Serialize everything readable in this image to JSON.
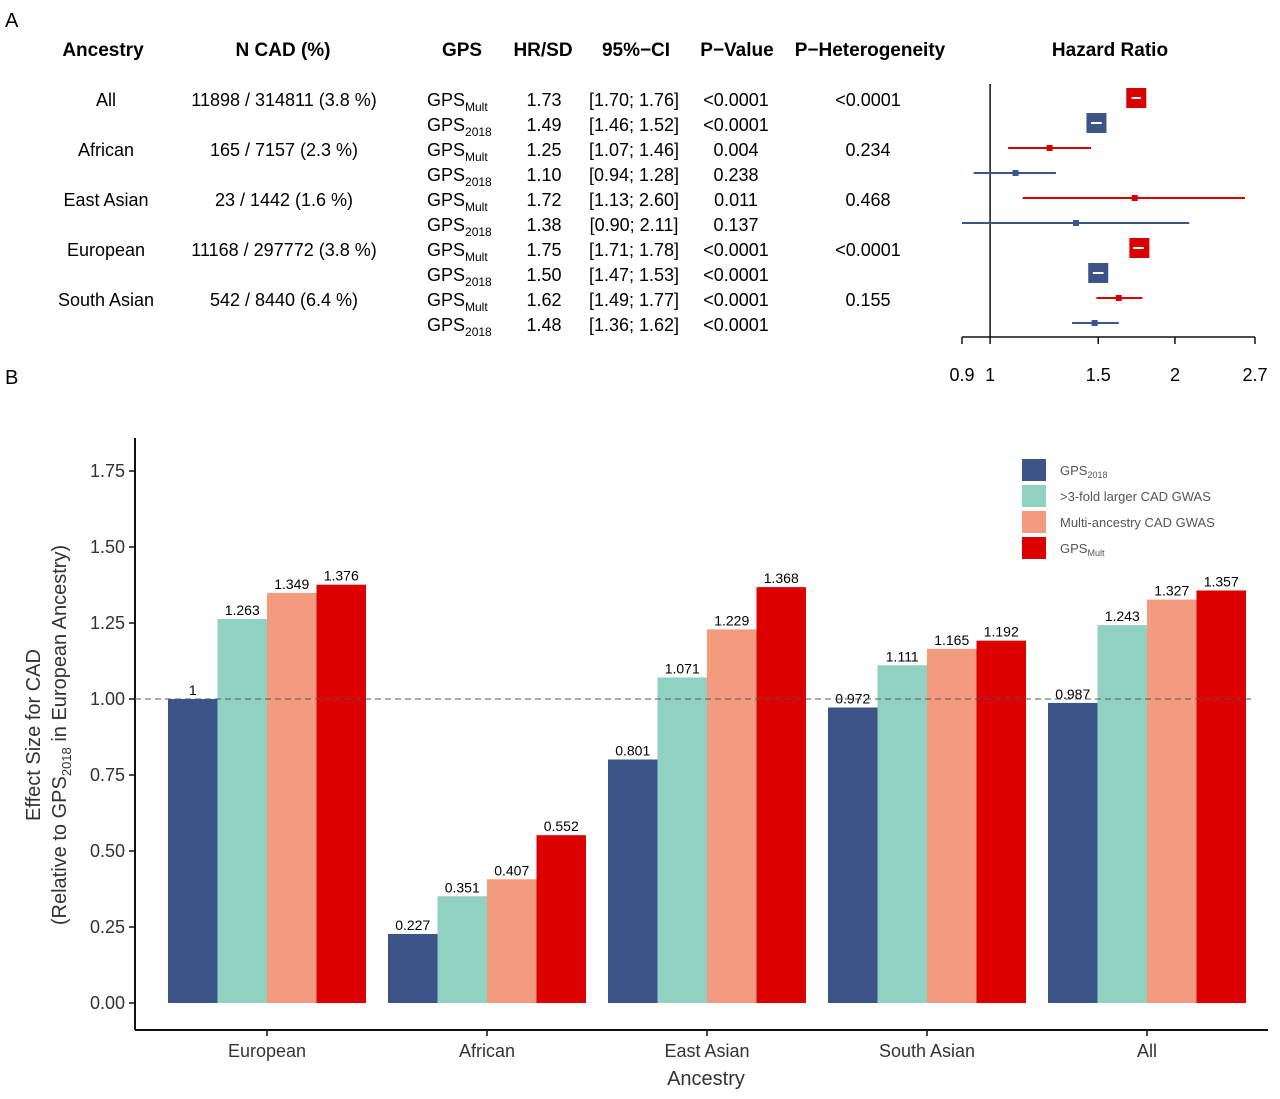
{
  "panels": {
    "a": "A",
    "b": "B"
  },
  "table": {
    "headers": {
      "ancestry": "Ancestry",
      "ncad": "N CAD (%)",
      "gps": "GPS",
      "hr": "HR/SD",
      "ci": "95%−CI",
      "p": "P−Value",
      "phet": "P−Heterogeneity",
      "forest": "Hazard Ratio"
    },
    "groups": [
      {
        "name": "All",
        "ncad": "11898 / 314811 (3.8 %)",
        "phet": "<0.0001"
      },
      {
        "name": "African",
        "ncad": "165 / 7157 (2.3 %)",
        "phet": "0.234"
      },
      {
        "name": "East Asian",
        "ncad": "23 / 1442 (1.6 %)",
        "phet": "0.468"
      },
      {
        "name": "European",
        "ncad": "11168 / 297772 (3.8 %)",
        "phet": "<0.0001"
      },
      {
        "name": "South Asian",
        "ncad": "542 / 8440 (6.4 %)",
        "phet": "0.155"
      }
    ],
    "rows": [
      {
        "gps_base": "GPS",
        "gps_sub": "Mult",
        "hr": "1.73",
        "ci": "[1.70; 1.76]",
        "p": "<0.0001",
        "est": 1.73,
        "lo": 1.7,
        "hi": 1.76,
        "color": "#d90000"
      },
      {
        "gps_base": "GPS",
        "gps_sub": "2018",
        "hr": "1.49",
        "ci": "[1.46; 1.52]",
        "p": "<0.0001",
        "est": 1.49,
        "lo": 1.46,
        "hi": 1.52,
        "color": "#3c5488"
      },
      {
        "gps_base": "GPS",
        "gps_sub": "Mult",
        "hr": "1.25",
        "ci": "[1.07; 1.46]",
        "p": "0.004",
        "est": 1.25,
        "lo": 1.07,
        "hi": 1.46,
        "color": "#d90000"
      },
      {
        "gps_base": "GPS",
        "gps_sub": "2018",
        "hr": "1.10",
        "ci": "[0.94; 1.28]",
        "p": "0.238",
        "est": 1.1,
        "lo": 0.94,
        "hi": 1.28,
        "color": "#3c5488"
      },
      {
        "gps_base": "GPS",
        "gps_sub": "Mult",
        "hr": "1.72",
        "ci": "[1.13; 2.60]",
        "p": "0.011",
        "est": 1.72,
        "lo": 1.13,
        "hi": 2.6,
        "color": "#d90000"
      },
      {
        "gps_base": "GPS",
        "gps_sub": "2018",
        "hr": "1.38",
        "ci": "[0.90; 2.11]",
        "p": "0.137",
        "est": 1.38,
        "lo": 0.9,
        "hi": 2.11,
        "color": "#3c5488"
      },
      {
        "gps_base": "GPS",
        "gps_sub": "Mult",
        "hr": "1.75",
        "ci": "[1.71; 1.78]",
        "p": "<0.0001",
        "est": 1.75,
        "lo": 1.71,
        "hi": 1.78,
        "color": "#d90000"
      },
      {
        "gps_base": "GPS",
        "gps_sub": "2018",
        "hr": "1.50",
        "ci": "[1.47; 1.53]",
        "p": "<0.0001",
        "est": 1.5,
        "lo": 1.47,
        "hi": 1.53,
        "color": "#3c5488"
      },
      {
        "gps_base": "GPS",
        "gps_sub": "Mult",
        "hr": "1.62",
        "ci": "[1.49; 1.77]",
        "p": "<0.0001",
        "est": 1.62,
        "lo": 1.49,
        "hi": 1.77,
        "color": "#d90000"
      },
      {
        "gps_base": "GPS",
        "gps_sub": "2018",
        "hr": "1.48",
        "ci": "[1.36; 1.62]",
        "p": "<0.0001",
        "est": 1.48,
        "lo": 1.36,
        "hi": 1.62,
        "color": "#3c5488"
      }
    ],
    "forest_axis": {
      "scale": "log",
      "range": [
        0.9,
        2.7
      ],
      "reference": 1,
      "ticks": [
        0.9,
        1,
        1.5,
        2,
        2.7
      ],
      "tick_labels": [
        "0.9",
        "1",
        "1.5",
        "2",
        "2.7"
      ]
    }
  },
  "chart_data": {
    "type": "bar",
    "categories": [
      "European",
      "African",
      "East Asian",
      "South Asian",
      "All"
    ],
    "series": [
      {
        "name": "GPS",
        "sub": "2018",
        "color": "#3c5488",
        "values": [
          1,
          0.227,
          0.801,
          0.972,
          0.987
        ],
        "labels": [
          "1",
          "0.227",
          "0.801",
          "0.972",
          "0.987"
        ]
      },
      {
        "name": ">3-fold larger CAD GWAS",
        "sub": "",
        "color": "#91d1c2",
        "values": [
          1.263,
          0.351,
          1.071,
          1.111,
          1.243
        ],
        "labels": [
          "1.263",
          "0.351",
          "1.071",
          "1.111",
          "1.243"
        ]
      },
      {
        "name": "Multi-ancestry CAD GWAS",
        "sub": "",
        "color": "#f39b7f",
        "values": [
          1.349,
          0.407,
          1.229,
          1.165,
          1.327
        ],
        "labels": [
          "1.349",
          "0.407",
          "1.229",
          "1.165",
          "1.327"
        ]
      },
      {
        "name": "GPS",
        "sub": "Mult",
        "color": "#dc0000",
        "values": [
          1.376,
          0.552,
          1.368,
          1.192,
          1.357
        ],
        "labels": [
          "1.376",
          "0.552",
          "1.368",
          "1.192",
          "1.357"
        ]
      }
    ],
    "xlabel": "Ancestry",
    "ylabel_line1": "Effect Size for CAD",
    "ylabel_line2": {
      "pre": "(Relative to GPS",
      "sub": "2018",
      "post": " in European Ancestry)"
    },
    "ylim": [
      0,
      1.8
    ],
    "yticks": [
      0,
      0.25,
      0.5,
      0.75,
      1,
      1.25,
      1.5,
      1.75
    ],
    "ytick_labels": [
      "0.00",
      "0.25",
      "0.50",
      "0.75",
      "1.00",
      "1.25",
      "1.50",
      "1.75"
    ],
    "reference_line": 1,
    "legend_position": "top-right",
    "grid": false
  }
}
